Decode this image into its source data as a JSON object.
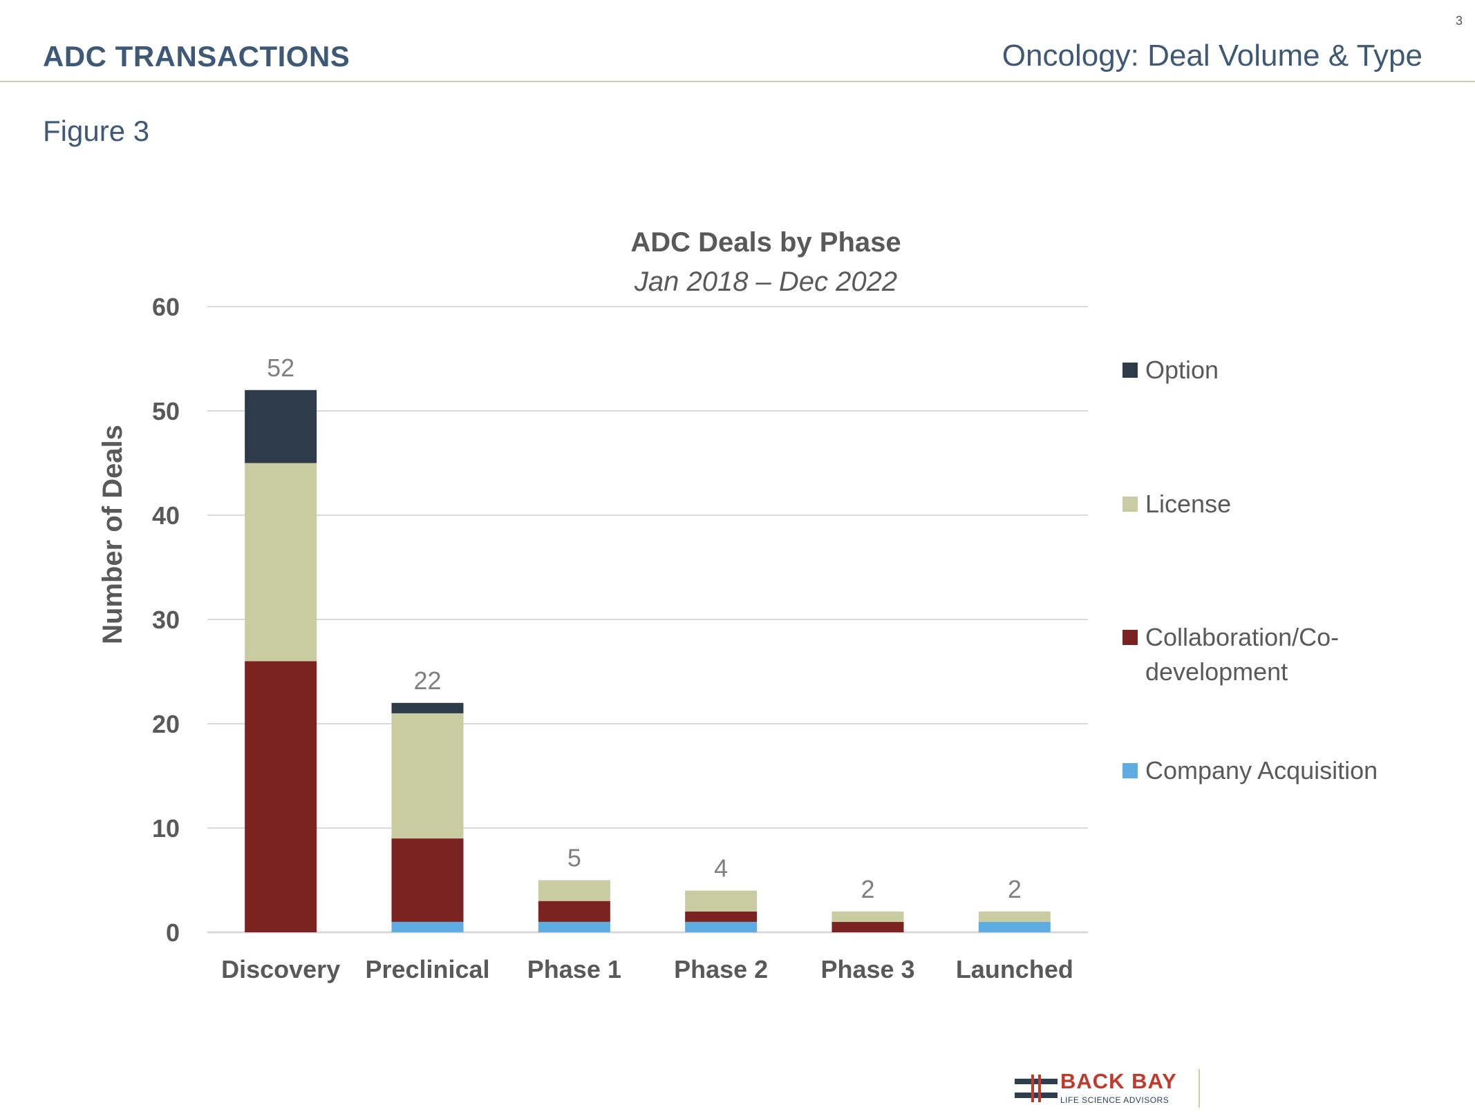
{
  "header": {
    "left_title": "ADC TRANSACTIONS",
    "right_title": "Oncology: Deal Volume & Type",
    "page_number": "3"
  },
  "figure_label": "Figure 3",
  "chart_data": {
    "type": "bar",
    "stacked": true,
    "title": "ADC Deals by Phase",
    "subtitle": "Jan 2018 – Dec 2022",
    "xlabel": "",
    "ylabel": "Number of Deals",
    "ylim": [
      0,
      60
    ],
    "yticks": [
      0,
      10,
      20,
      30,
      40,
      50,
      60
    ],
    "grid": true,
    "legend_position": "right",
    "categories": [
      "Discovery",
      "Preclinical",
      "Phase 1",
      "Phase 2",
      "Phase 3",
      "Launched"
    ],
    "totals": [
      52,
      22,
      5,
      4,
      2,
      2
    ],
    "series": [
      {
        "name": "Company Acquisition",
        "color": "#5dade2",
        "values": [
          0,
          1,
          1,
          1,
          0,
          1
        ]
      },
      {
        "name": "Collaboration/Co-development",
        "color": "#7b2320",
        "values": [
          26,
          8,
          2,
          1,
          1,
          0
        ]
      },
      {
        "name": "License",
        "color": "#c9cba0",
        "values": [
          19,
          12,
          2,
          2,
          1,
          1
        ]
      },
      {
        "name": "Option",
        "color": "#2d3b4a",
        "values": [
          7,
          1,
          0,
          0,
          0,
          0
        ]
      }
    ],
    "legend_order": [
      "Option",
      "License",
      "Collaboration/Co-development",
      "Company Acquisition"
    ]
  },
  "logo": {
    "line1": "BACK BAY",
    "line2": "LIFE SCIENCE ADVISORS",
    "name": "back-bay-logo-icon"
  }
}
